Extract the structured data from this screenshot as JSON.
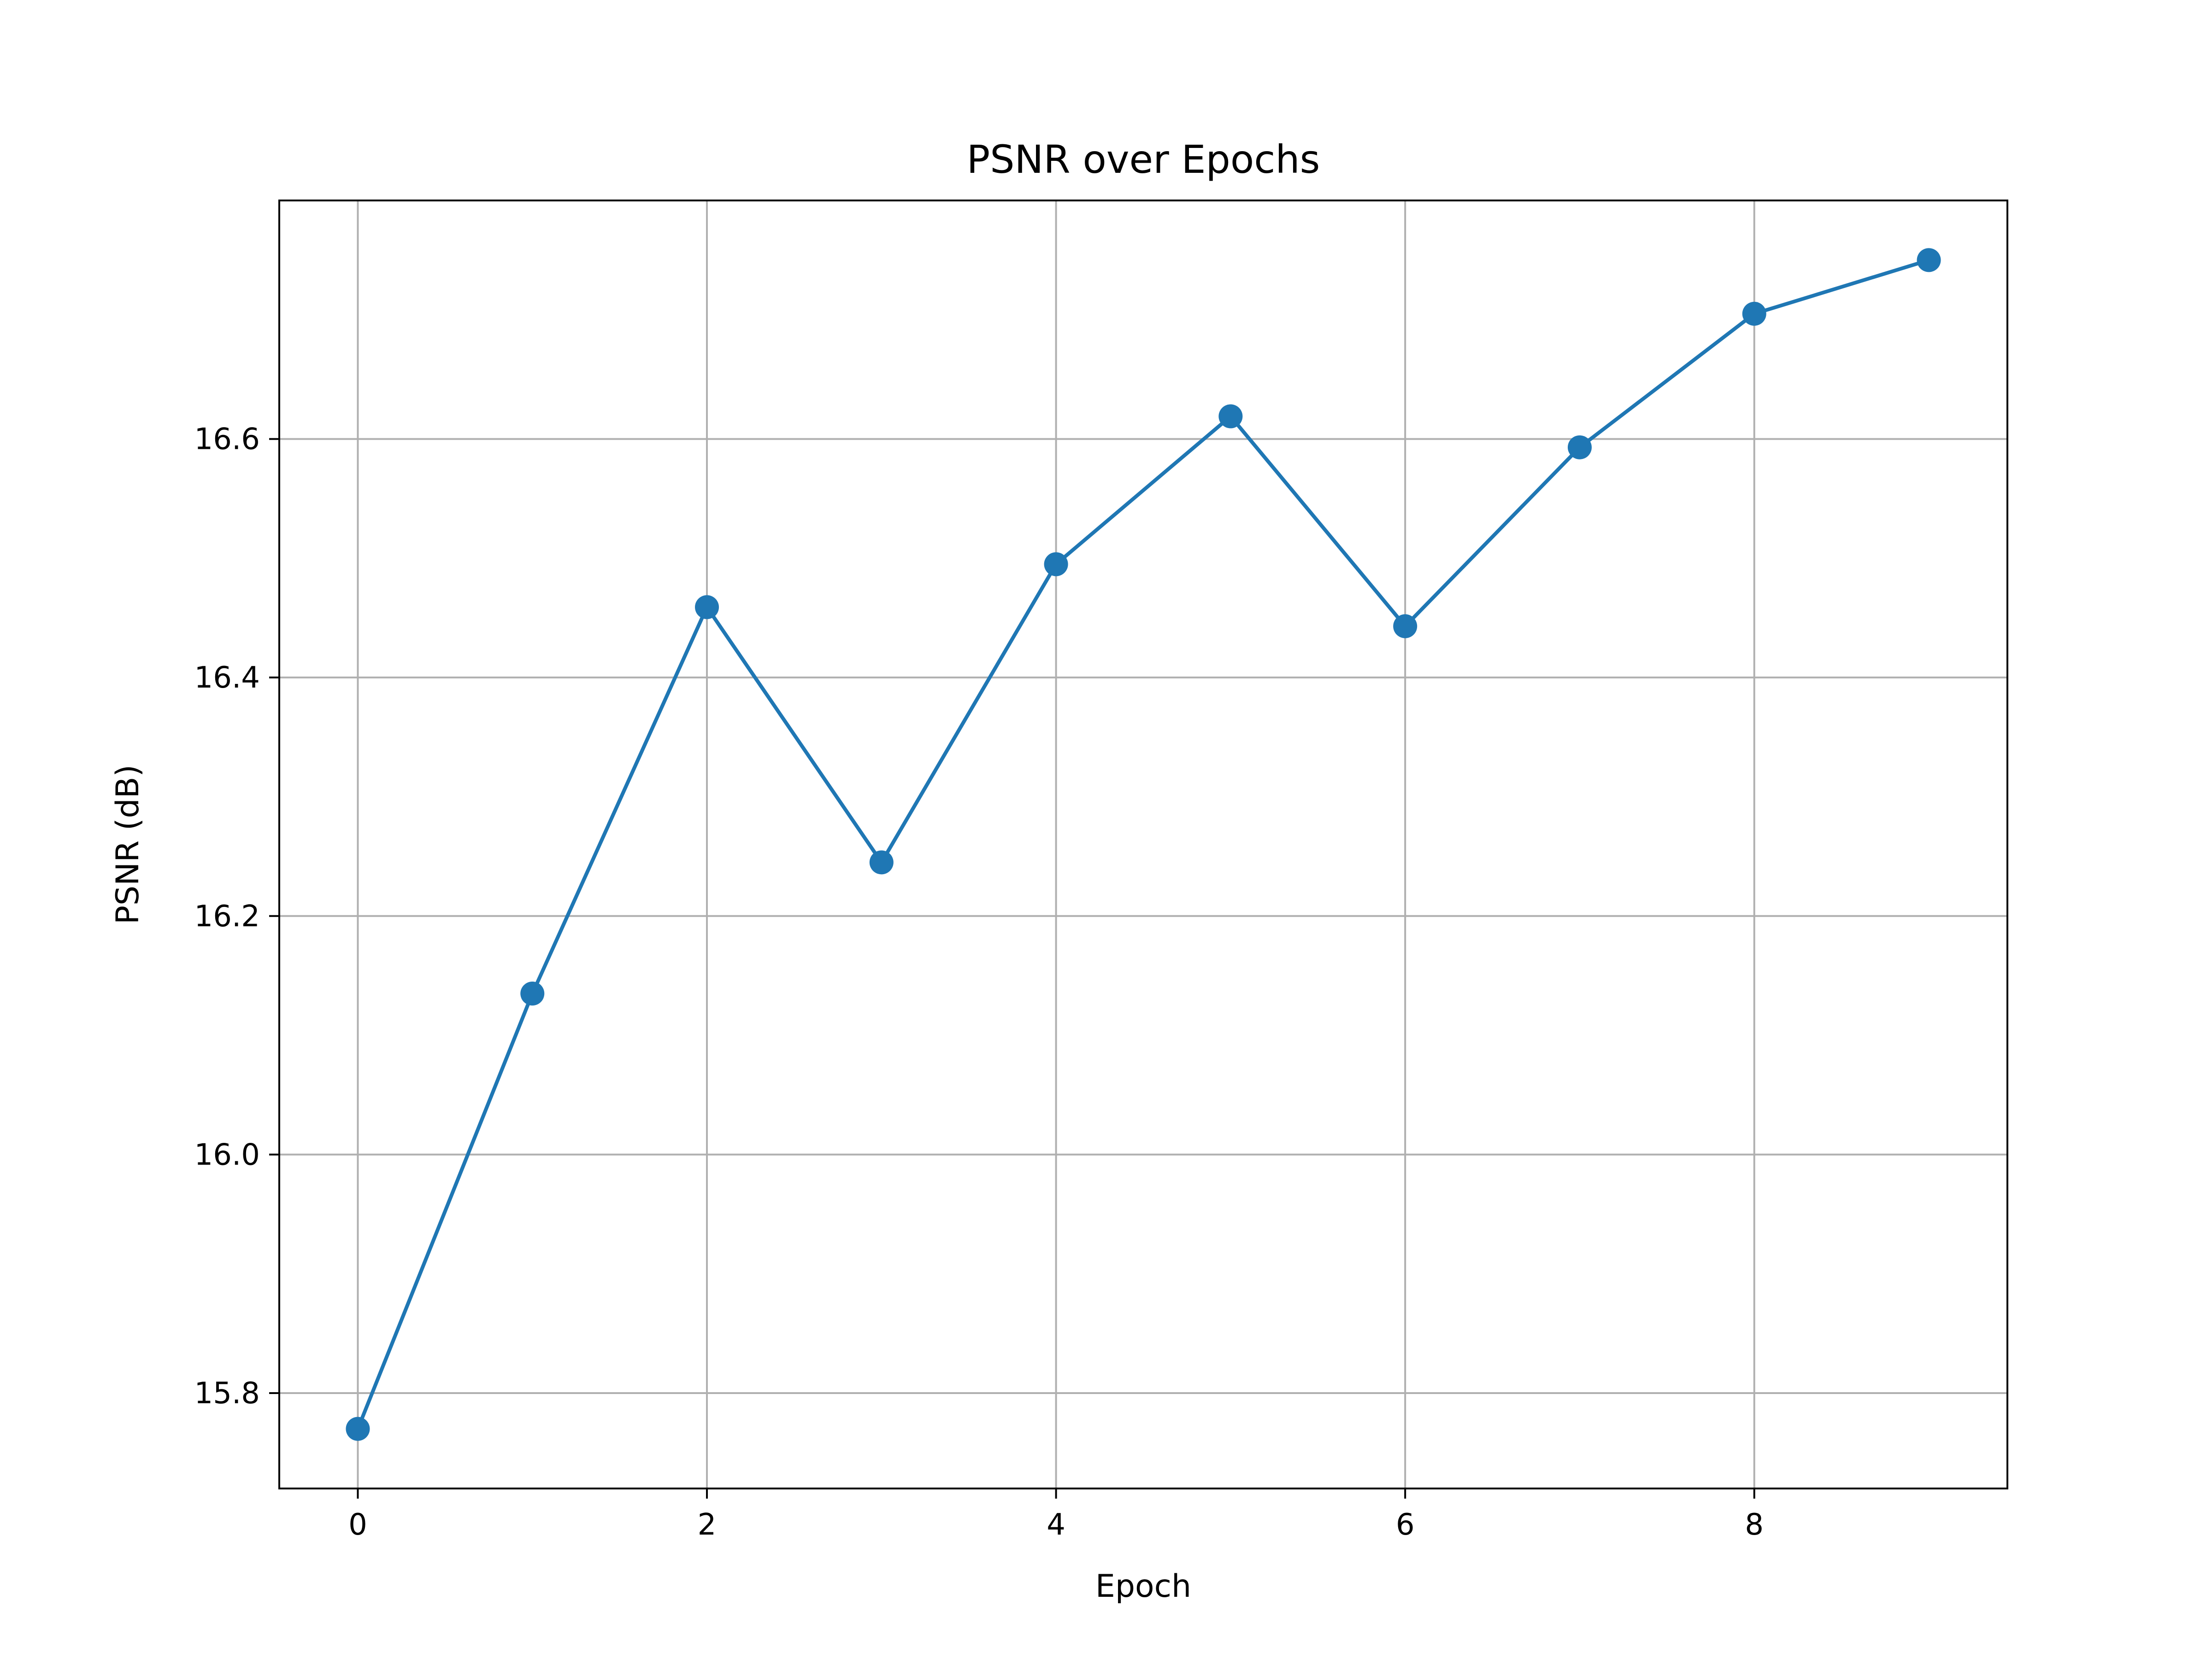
{
  "chart_data": {
    "type": "line",
    "title": "PSNR over Epochs",
    "xlabel": "Epoch",
    "ylabel": "PSNR (dB)",
    "x": [
      0,
      1,
      2,
      3,
      4,
      5,
      6,
      7,
      8,
      9
    ],
    "series": [
      {
        "values": [
          15.77,
          16.135,
          16.459,
          16.245,
          16.495,
          16.619,
          16.443,
          16.593,
          16.705,
          16.75
        ],
        "color": "#1f77b4",
        "marker": "circle"
      }
    ],
    "xlim": [
      -0.45,
      9.45
    ],
    "ylim": [
      15.72,
      16.8
    ],
    "xticks": [
      0,
      2,
      4,
      6,
      8
    ],
    "xtick_labels": [
      "0",
      "2",
      "4",
      "6",
      "8"
    ],
    "yticks": [
      15.8,
      16.0,
      16.2,
      16.4,
      16.6
    ],
    "ytick_labels": [
      "15.8",
      "16.0",
      "16.2",
      "16.4",
      "16.6"
    ],
    "grid": true,
    "grid_color": "#b0b0b0"
  }
}
